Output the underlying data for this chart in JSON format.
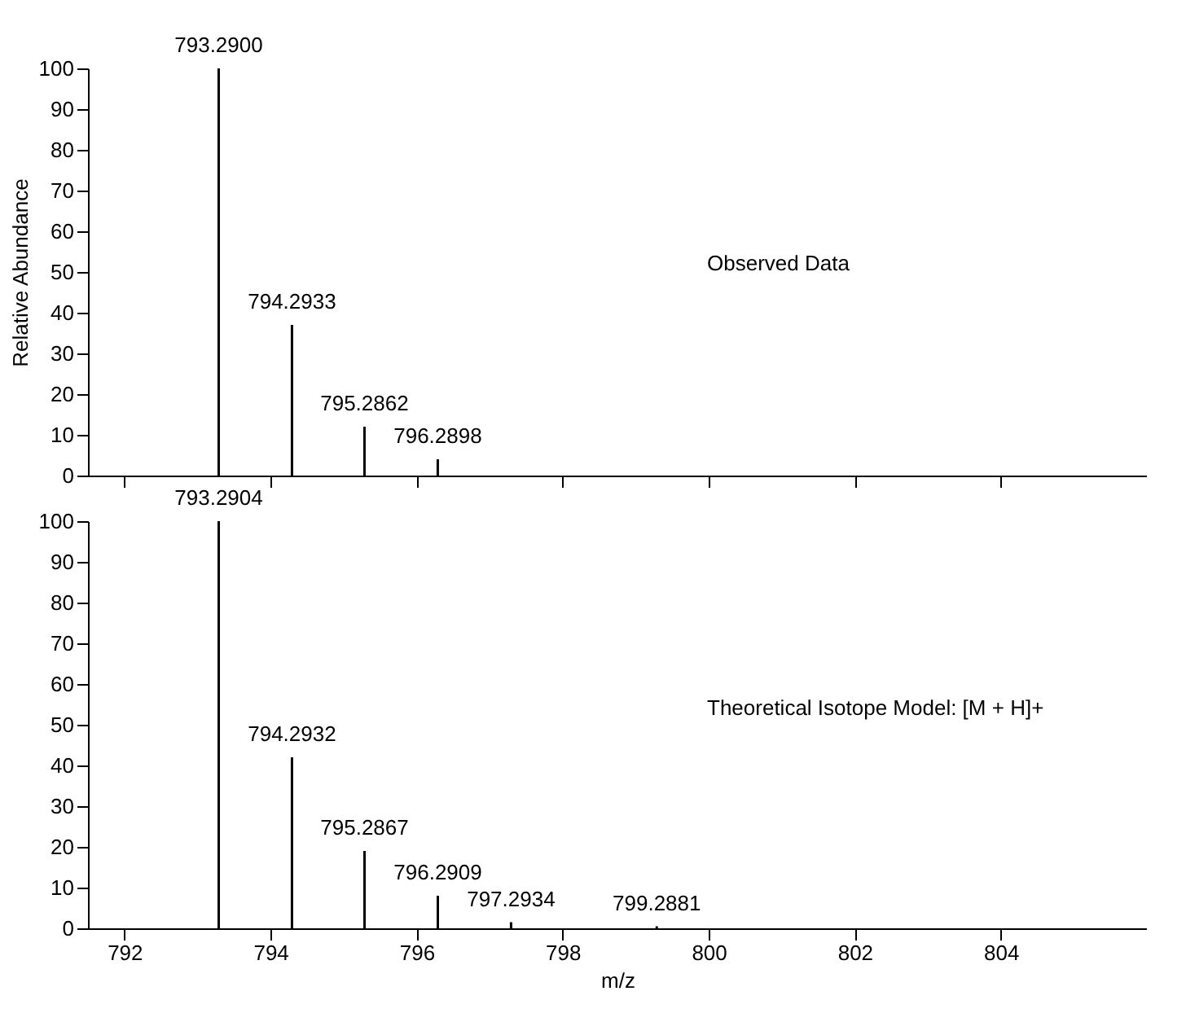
{
  "chart_data": [
    {
      "type": "bar",
      "ylabel": "Relative Abundance",
      "x": [
        793.29,
        794.2933,
        795.2862,
        796.2898
      ],
      "series": [
        {
          "color": "#000000",
          "values": [
            100,
            37,
            12,
            4
          ]
        }
      ],
      "xlim": [
        791.5,
        806
      ],
      "xticks": [
        792,
        794,
        796,
        798,
        800,
        802,
        804
      ],
      "ylim": [
        0,
        100
      ],
      "yticks": [
        0,
        10,
        20,
        30,
        40,
        50,
        60,
        70,
        80,
        90,
        100
      ],
      "tick_labels": "y",
      "annotations": [
        {
          "text": "793.2900",
          "x": 793.29,
          "y": 100
        },
        {
          "text": "794.2933",
          "x": 794.2933,
          "y": 37
        },
        {
          "text": "795.2862",
          "x": 795.2862,
          "y": 12
        },
        {
          "text": "796.2898",
          "x": 796.2898,
          "y": 4
        },
        "Observed Data"
      ]
    },
    {
      "type": "bar",
      "xlabel": "m/z",
      "x": [
        793.2904,
        794.2932,
        795.2867,
        796.2909,
        797.2934,
        799.2881
      ],
      "series": [
        {
          "color": "#000000",
          "values": [
            100,
            42,
            19,
            8,
            1.5,
            0.5
          ]
        }
      ],
      "xlim": [
        791.5,
        806
      ],
      "xticks": [
        792,
        794,
        796,
        798,
        800,
        802,
        804
      ],
      "ylim": [
        0,
        100
      ],
      "yticks": [
        0,
        10,
        20,
        30,
        40,
        50,
        60,
        70,
        80,
        90,
        100
      ],
      "annotations": [
        {
          "text": "793.2904",
          "x": 793.2904,
          "y": 100
        },
        {
          "text": "794.2932",
          "x": 794.2932,
          "y": 42
        },
        {
          "text": "795.2867",
          "x": 795.2867,
          "y": 19
        },
        {
          "text": "796.2909",
          "x": 796.2909,
          "y": 8
        },
        {
          "text": "797.2934",
          "x": 797.2934,
          "y": 1.5
        },
        {
          "text": "799.2881",
          "x": 799.2881,
          "y": 0.5
        },
        "Theoretical Isotope Model: [M + H]+"
      ]
    }
  ]
}
